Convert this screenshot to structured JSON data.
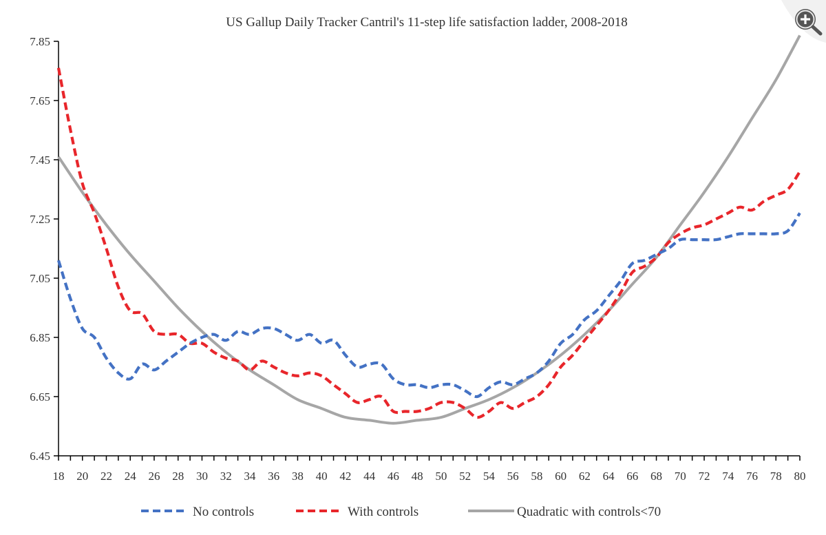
{
  "chart_data": {
    "type": "line",
    "title": "US Gallup Daily Tracker Cantril's 11-step life satisfaction ladder, 2008-2018",
    "xlabel": "",
    "ylabel": "",
    "xlim": [
      18,
      80
    ],
    "ylim": [
      6.45,
      7.85
    ],
    "y_ticks": [
      "7.85",
      "7.65",
      "7.45",
      "7.25",
      "7.05",
      "6.85",
      "6.65",
      "6.45"
    ],
    "y_tick_values": [
      7.85,
      7.65,
      7.45,
      7.25,
      7.05,
      6.85,
      6.65,
      6.45
    ],
    "x_ticks": [
      "18",
      "20",
      "22",
      "24",
      "26",
      "28",
      "30",
      "32",
      "34",
      "36",
      "38",
      "40",
      "42",
      "44",
      "46",
      "48",
      "50",
      "52",
      "54",
      "56",
      "58",
      "60",
      "62",
      "64",
      "66",
      "68",
      "70",
      "72",
      "74",
      "76",
      "78",
      "80"
    ],
    "x_tick_values": [
      18,
      20,
      22,
      24,
      26,
      28,
      30,
      32,
      34,
      36,
      38,
      40,
      42,
      44,
      46,
      48,
      50,
      52,
      54,
      56,
      58,
      60,
      62,
      64,
      66,
      68,
      70,
      72,
      74,
      76,
      78,
      80
    ],
    "grid": false,
    "legend_position": "bottom",
    "series": [
      {
        "name": "No controls",
        "color": "#4472c4",
        "style": "dashed",
        "x": [
          18,
          19,
          20,
          21,
          22,
          23,
          24,
          25,
          26,
          27,
          28,
          29,
          30,
          31,
          32,
          33,
          34,
          35,
          36,
          37,
          38,
          39,
          40,
          41,
          42,
          43,
          44,
          45,
          46,
          47,
          48,
          49,
          50,
          51,
          52,
          53,
          54,
          55,
          56,
          57,
          58,
          59,
          60,
          61,
          62,
          63,
          64,
          65,
          66,
          67,
          68,
          69,
          70,
          71,
          72,
          73,
          74,
          75,
          76,
          77,
          78,
          79,
          80
        ],
        "y": [
          7.11,
          6.98,
          6.88,
          6.85,
          6.78,
          6.73,
          6.71,
          6.76,
          6.74,
          6.77,
          6.8,
          6.83,
          6.85,
          6.86,
          6.84,
          6.87,
          6.86,
          6.88,
          6.88,
          6.86,
          6.84,
          6.86,
          6.83,
          6.84,
          6.79,
          6.75,
          6.76,
          6.76,
          6.71,
          6.69,
          6.69,
          6.68,
          6.69,
          6.69,
          6.67,
          6.65,
          6.68,
          6.7,
          6.69,
          6.71,
          6.73,
          6.77,
          6.83,
          6.86,
          6.91,
          6.94,
          6.99,
          7.04,
          7.1,
          7.11,
          7.13,
          7.15,
          7.18,
          7.18,
          7.18,
          7.18,
          7.19,
          7.2,
          7.2,
          7.2,
          7.2,
          7.21,
          7.27
        ]
      },
      {
        "name": "With controls",
        "color": "#e8262b",
        "style": "dashed",
        "x": [
          18,
          19,
          20,
          21,
          22,
          23,
          24,
          25,
          26,
          27,
          28,
          29,
          30,
          31,
          32,
          33,
          34,
          35,
          36,
          37,
          38,
          39,
          40,
          41,
          42,
          43,
          44,
          45,
          46,
          47,
          48,
          49,
          50,
          51,
          52,
          53,
          54,
          55,
          56,
          57,
          58,
          59,
          60,
          61,
          62,
          63,
          64,
          65,
          66,
          67,
          68,
          69,
          70,
          71,
          72,
          73,
          74,
          75,
          76,
          77,
          78,
          79,
          80
        ],
        "y": [
          7.76,
          7.55,
          7.37,
          7.27,
          7.15,
          7.02,
          6.94,
          6.93,
          6.87,
          6.86,
          6.86,
          6.83,
          6.83,
          6.8,
          6.78,
          6.77,
          6.74,
          6.77,
          6.75,
          6.73,
          6.72,
          6.73,
          6.72,
          6.69,
          6.66,
          6.63,
          6.64,
          6.65,
          6.6,
          6.6,
          6.6,
          6.61,
          6.63,
          6.63,
          6.61,
          6.58,
          6.6,
          6.63,
          6.61,
          6.63,
          6.65,
          6.69,
          6.75,
          6.79,
          6.84,
          6.89,
          6.94,
          7.0,
          7.07,
          7.09,
          7.12,
          7.17,
          7.2,
          7.22,
          7.23,
          7.25,
          7.27,
          7.29,
          7.28,
          7.31,
          7.33,
          7.35,
          7.41
        ]
      },
      {
        "name": "Quadratic with controls<70",
        "color": "#a6a6a6",
        "style": "solid",
        "x": [
          18,
          20,
          22,
          24,
          26,
          28,
          30,
          32,
          34,
          36,
          38,
          40,
          42,
          44,
          46,
          48,
          50,
          52,
          54,
          56,
          58,
          60,
          62,
          64,
          66,
          68,
          70,
          72,
          74,
          76,
          78,
          80
        ],
        "y": [
          7.46,
          7.34,
          7.23,
          7.13,
          7.04,
          6.95,
          6.87,
          6.8,
          6.74,
          6.69,
          6.64,
          6.61,
          6.58,
          6.57,
          6.56,
          6.57,
          6.58,
          6.61,
          6.64,
          6.68,
          6.73,
          6.79,
          6.86,
          6.94,
          7.03,
          7.12,
          7.23,
          7.34,
          7.46,
          7.59,
          7.72,
          7.87
        ]
      }
    ]
  },
  "ui": {
    "zoom_icon": "zoom-in-magnifier-icon"
  }
}
